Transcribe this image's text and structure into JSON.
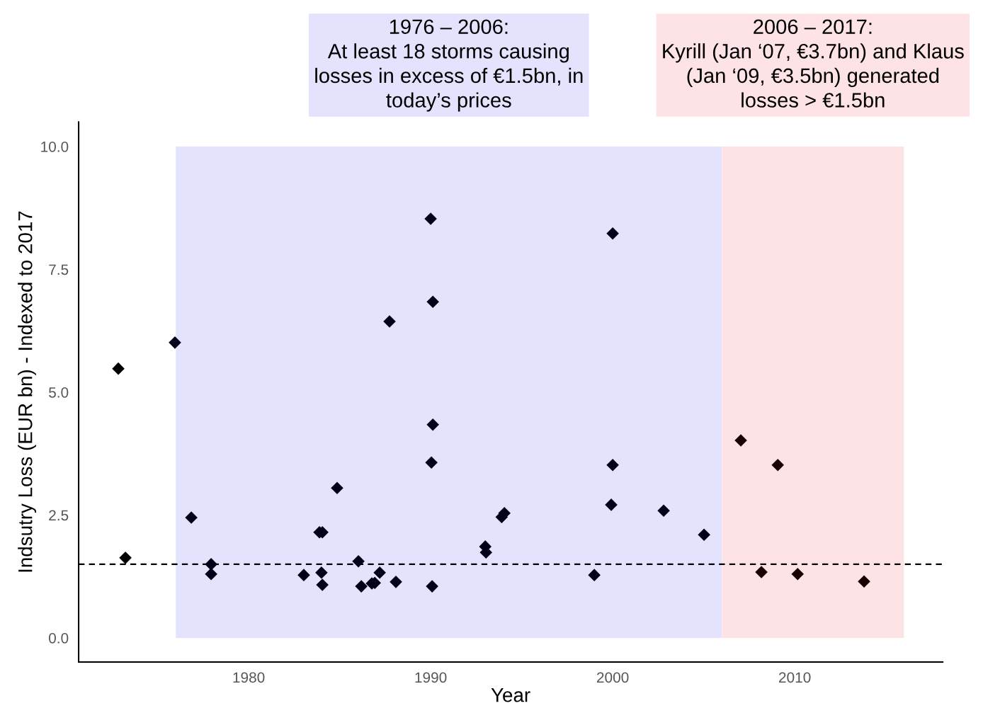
{
  "chart_data": {
    "type": "scatter",
    "xlabel": "Year",
    "ylabel": "Indsutry Loss (EUR bn) - Indexed to 2017",
    "xlim": [
      1970.66,
      2018.13
    ],
    "ylim": [
      -0.49,
      10.5
    ],
    "xticks": [
      1980,
      1990,
      2000,
      2010
    ],
    "yticks": [
      {
        "value": 0,
        "label": "0.0"
      },
      {
        "value": 2.5,
        "label": "2.5"
      },
      {
        "value": 5,
        "label": "5.0"
      },
      {
        "value": 7.5,
        "label": "7.5"
      },
      {
        "value": 10,
        "label": "10.0"
      }
    ],
    "grid": false,
    "marker": "diamond",
    "series": [
      {
        "color": "#000000",
        "x": [
          1972.84,
          1973.23
        ],
        "values": [
          5.48,
          1.63
        ]
      },
      {
        "color": "#00001a",
        "x": [
          1975.95,
          1976.85,
          1977.94,
          1977.94,
          1983.03,
          1983.89,
          1984.05,
          1984.0,
          1984.05,
          1984.86,
          1986.03,
          1986.19,
          1986.77,
          1986.93,
          1987.2,
          1987.74,
          1988.09,
          1990.0,
          1990.12,
          1990.12,
          1990.04,
          1990.08,
          1993.0,
          1993.04,
          1993.9,
          1994.05,
          1998.99,
          2000.0,
          2000.0,
          1999.92,
          2002.8,
          2005.02
        ],
        "values": [
          6.01,
          2.45,
          1.5,
          1.3,
          1.28,
          2.15,
          2.15,
          1.33,
          1.08,
          3.05,
          1.56,
          1.05,
          1.11,
          1.12,
          1.33,
          6.44,
          1.14,
          8.53,
          6.84,
          4.34,
          3.57,
          1.05,
          1.86,
          1.74,
          2.46,
          2.54,
          1.28,
          8.23,
          3.52,
          2.71,
          2.59,
          2.1
        ]
      },
      {
        "color": "#1a0000",
        "x": [
          2007.04,
          2008.17,
          2009.07,
          2010.16,
          2013.81
        ],
        "values": [
          4.02,
          1.34,
          3.52,
          1.3,
          1.15
        ]
      }
    ],
    "ref_lines": [
      {
        "axis": "y",
        "value": 1.5,
        "color": "#000000",
        "line_style": "dashed"
      }
    ],
    "bands": [
      {
        "axis": "x",
        "from": 1976,
        "to": 2006,
        "color": "#e3e3fd"
      },
      {
        "axis": "x",
        "from": 2006,
        "to": 2016,
        "color": "#fde3e5"
      }
    ],
    "annotations": [
      "1976 – 2006:\nAt least 18 storms causing\nlosses in excess of €1.5bn, in\ntoday’s prices",
      "2006 – 2017:\nKyrill (Jan ‘07, €3.7bn) and Klaus\n(Jan ‘09, €3.5bn) generated\nlosses > €1.5bn"
    ]
  }
}
